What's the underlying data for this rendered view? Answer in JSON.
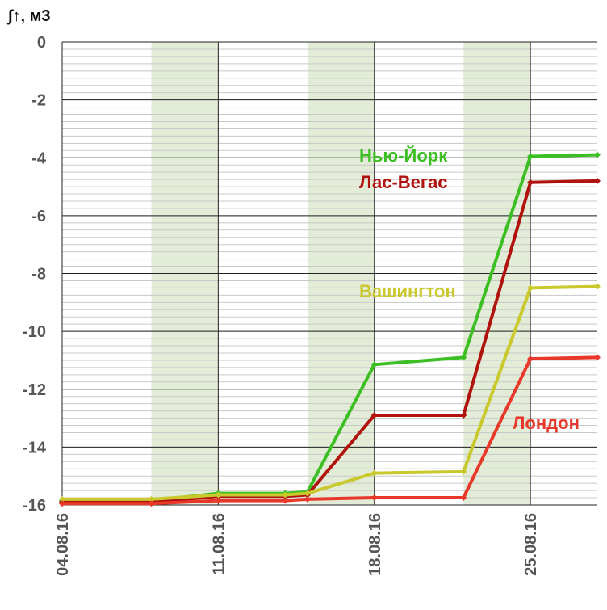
{
  "chart_data": {
    "type": "line",
    "y_label": "∫↑, м3",
    "x": [
      "04.08.16",
      "08.08.16",
      "11.08.16",
      "14.08.16",
      "15.08.16",
      "18.08.16",
      "22.08.16",
      "25.08.16",
      "28.08.16"
    ],
    "xlim": [
      "04.08.16",
      "28.08.16"
    ],
    "xticks": [
      "04.08.16",
      "11.08.16",
      "18.08.16",
      "25.08.16"
    ],
    "ylim": [
      -16,
      0
    ],
    "yticks": [
      0,
      -2,
      -4,
      -6,
      -8,
      -10,
      -12,
      -14,
      -16
    ],
    "minor_grid_step": 0.25,
    "grid": true,
    "shaded_ranges": [
      [
        "08.08.16",
        "11.08.16"
      ],
      [
        "15.08.16",
        "18.08.16"
      ],
      [
        "22.08.16",
        "25.08.16"
      ]
    ],
    "shade_color": "#e3ecd6",
    "series": [
      {
        "name": "Нью-Йорк",
        "color": "#3cbf22",
        "values": [
          -15.85,
          -15.85,
          -15.6,
          -15.6,
          -15.55,
          -11.15,
          -10.9,
          -3.95,
          -3.9
        ]
      },
      {
        "name": "Лас-Вегас",
        "color": "#b0120e",
        "values": [
          -15.9,
          -15.9,
          -15.7,
          -15.7,
          -15.65,
          -12.9,
          -12.9,
          -4.85,
          -4.8
        ]
      },
      {
        "name": "Вашингтон",
        "color": "#c9c82c",
        "values": [
          -15.8,
          -15.8,
          -15.65,
          -15.65,
          -15.6,
          -14.9,
          -14.85,
          -8.5,
          -8.45
        ]
      },
      {
        "name": "Лондон",
        "color": "#e8382a",
        "values": [
          -15.95,
          -15.95,
          -15.85,
          -15.85,
          -15.8,
          -15.75,
          -15.75,
          -10.95,
          -10.9
        ]
      }
    ]
  }
}
